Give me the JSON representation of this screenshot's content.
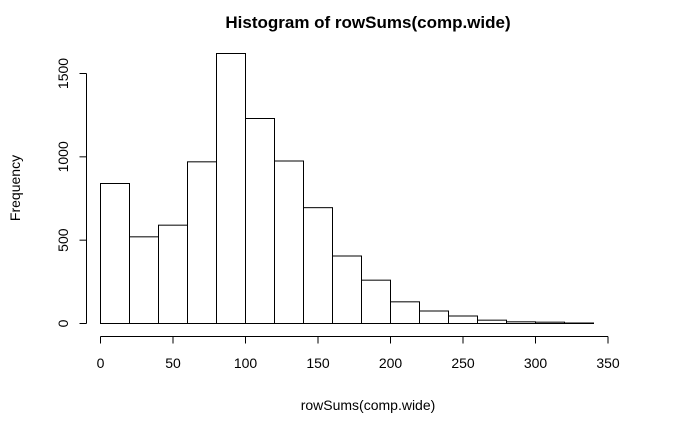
{
  "chart_data": {
    "type": "bar",
    "title": "Histogram of rowSums(comp.wide)",
    "xlabel": "rowSums(comp.wide)",
    "ylabel": "Frequency",
    "bin_edges": [
      0,
      20,
      40,
      60,
      80,
      100,
      120,
      140,
      160,
      180,
      200,
      220,
      240,
      260,
      280,
      300,
      320,
      340,
      360
    ],
    "values": [
      840,
      520,
      590,
      970,
      1620,
      1230,
      975,
      695,
      405,
      260,
      130,
      75,
      45,
      20,
      10,
      8,
      3,
      0
    ],
    "xlim": [
      0,
      360
    ],
    "ylim": [
      0,
      1650
    ],
    "x_ticks": [
      0,
      50,
      100,
      150,
      200,
      250,
      300,
      350
    ],
    "x_tick_labels": [
      "0",
      "50",
      "100",
      "150",
      "200",
      "250",
      "300",
      "350"
    ],
    "y_ticks": [
      0,
      500,
      1000,
      1500
    ],
    "y_tick_labels": [
      "0",
      "500",
      "1000",
      "1500"
    ],
    "grid": false,
    "legend": "none"
  }
}
